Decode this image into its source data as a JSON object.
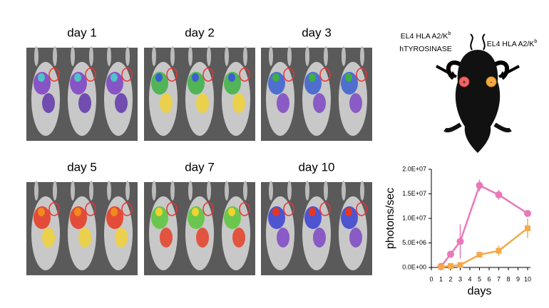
{
  "panels": [
    {
      "label": "day 1"
    },
    {
      "label": "day 2"
    },
    {
      "label": "day 3"
    },
    {
      "label": "day 5"
    },
    {
      "label": "day 7"
    },
    {
      "label": "day 10"
    }
  ],
  "diagram": {
    "left_label": {
      "text": "EL4 HLA A2/K",
      "sup": "b",
      "line2": "hTYROSINASE"
    },
    "right_label": {
      "text": "EL4 HLA A2/K",
      "sup": "b"
    },
    "plus": "+",
    "minus": "-"
  },
  "chart_data": {
    "type": "line",
    "x": [
      1,
      2,
      3,
      5,
      7,
      10
    ],
    "series": [
      {
        "color": "#e879b8",
        "values": [
          200000,
          2700000,
          5300000,
          16700000,
          14800000,
          11000000
        ],
        "errors": [
          200000,
          500000,
          3500000,
          1200000,
          1000000,
          500000
        ]
      },
      {
        "color": "#f5a94a",
        "values": [
          100000,
          300000,
          500000,
          2600000,
          3400000,
          8000000
        ],
        "errors": [
          100000,
          200000,
          300000,
          300000,
          1000000,
          2000000
        ]
      }
    ],
    "xlim": [
      0,
      10
    ],
    "xticks": [
      0,
      1,
      2,
      3,
      4,
      5,
      6,
      7,
      8,
      9,
      10
    ],
    "ylim": [
      0,
      20000000
    ],
    "yticks": [
      {
        "value": 0,
        "label": "0.0E+00"
      },
      {
        "value": 5000000,
        "label": "5.0E+06"
      },
      {
        "value": 10000000,
        "label": "1.0E+07"
      },
      {
        "value": 15000000,
        "label": "1.5E+07"
      },
      {
        "value": 20000000,
        "label": "2.0E+07"
      }
    ],
    "x_label": "days",
    "y_label": "photons/sec"
  }
}
